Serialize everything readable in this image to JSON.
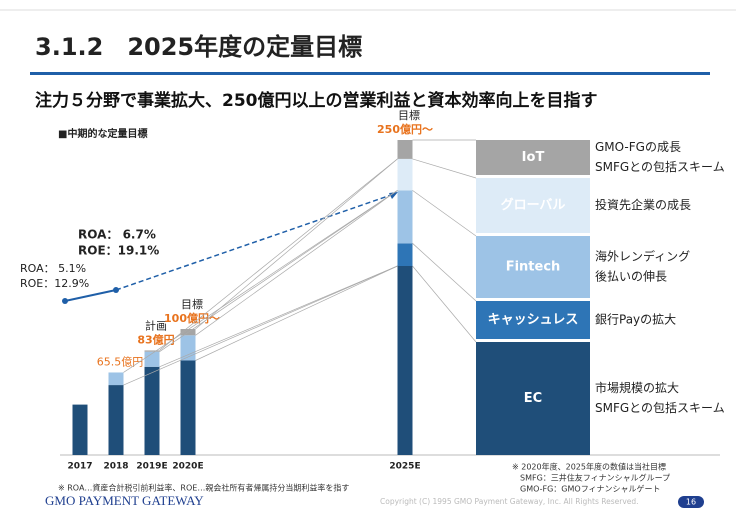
{
  "header": {
    "title": "3.1.2　2025年度の定量目標",
    "subtitle": "注力５分野で事業拡大、250億円以上の営業利益と資本効率向上を目指す",
    "section": "■中期的な定量目標"
  },
  "chart_data": {
    "type": "bar",
    "stacked": true,
    "categories": [
      "2017",
      "2018",
      "2019E",
      "2020E",
      "2025E"
    ],
    "series": [
      {
        "name": "EC",
        "color": "#1f4e79",
        "values": [
          40,
          55.5,
          70,
          75,
          150
        ]
      },
      {
        "name": "キャッシュレス",
        "color": "#2e75b6",
        "values": [
          null,
          null,
          null,
          null,
          18
        ]
      },
      {
        "name": "Fintech",
        "color": "#9dc3e6",
        "values": [
          null,
          10,
          12,
          20,
          42
        ]
      },
      {
        "name": "グローバル",
        "color": "#ddebf7",
        "values": [
          null,
          null,
          null,
          null,
          25
        ]
      },
      {
        "name": "IoT",
        "color": "#a5a5a5",
        "values": [
          null,
          null,
          1,
          5,
          15
        ]
      }
    ],
    "totals": [
      40,
      65.5,
      83,
      100,
      250
    ],
    "total_labels": [
      null,
      "65.5億円",
      "83億円",
      "100億円〜",
      "250億円〜"
    ],
    "total_prefixes": [
      null,
      null,
      "計画",
      "目標",
      "目標"
    ],
    "segment_notes": [
      [
        "市場規模の拡大",
        "SMFGとの包括スキーム"
      ],
      [
        "銀行Payの拡大"
      ],
      [
        "海外レンディング",
        "後払いの伸長"
      ],
      [
        "投資先企業の成長"
      ],
      [
        "GMO-FGの成長",
        "SMFGとの包括スキーム"
      ]
    ],
    "annotations": [
      [
        "ROA：  5.1%",
        "ROE：12.9%"
      ],
      [
        "ROA：  6.7%",
        "ROE：19.1%"
      ]
    ]
  },
  "footer": {
    "note_left": "※ ROA…資産合計税引前利益率、ROE…親会社所有者帰属持分当期利益率を指す",
    "notes_right": [
      "※ 2020年度、2025年度の数値は当社目標",
      "SMFG：三井住友フィナンシャルグループ",
      "GMO-FG：GMOフィナンシャルゲート"
    ],
    "logo": "GMO PAYMENT GATEWAY",
    "copyright": "Copyright (C) 1995 GMO Payment Gateway, Inc. All Rights Reserved.",
    "page": "16"
  }
}
